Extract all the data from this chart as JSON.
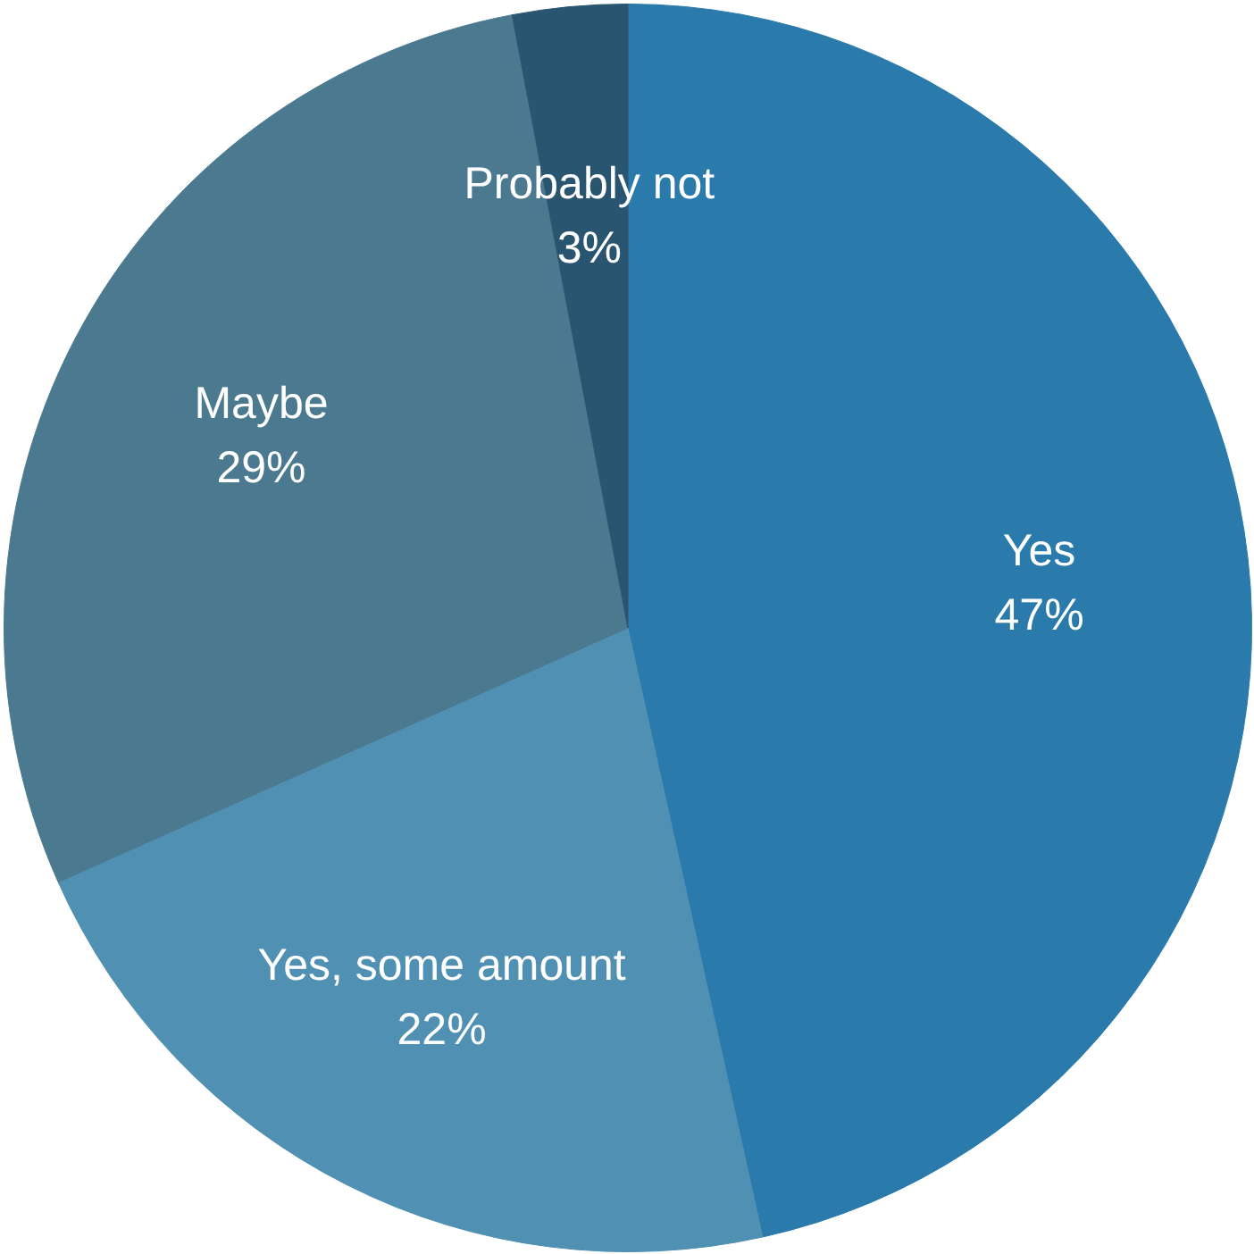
{
  "chart_data": {
    "type": "pie",
    "categories": [
      "Yes",
      "Yes, some amount",
      "Maybe",
      "Probably not"
    ],
    "values": [
      47,
      22,
      29,
      3
    ],
    "colors": [
      "#2a7aab",
      "#5090b2",
      "#4b7990",
      "#2a5570"
    ],
    "value_labels": [
      "47%",
      "22%",
      "29%",
      "3%"
    ],
    "legend": false
  }
}
